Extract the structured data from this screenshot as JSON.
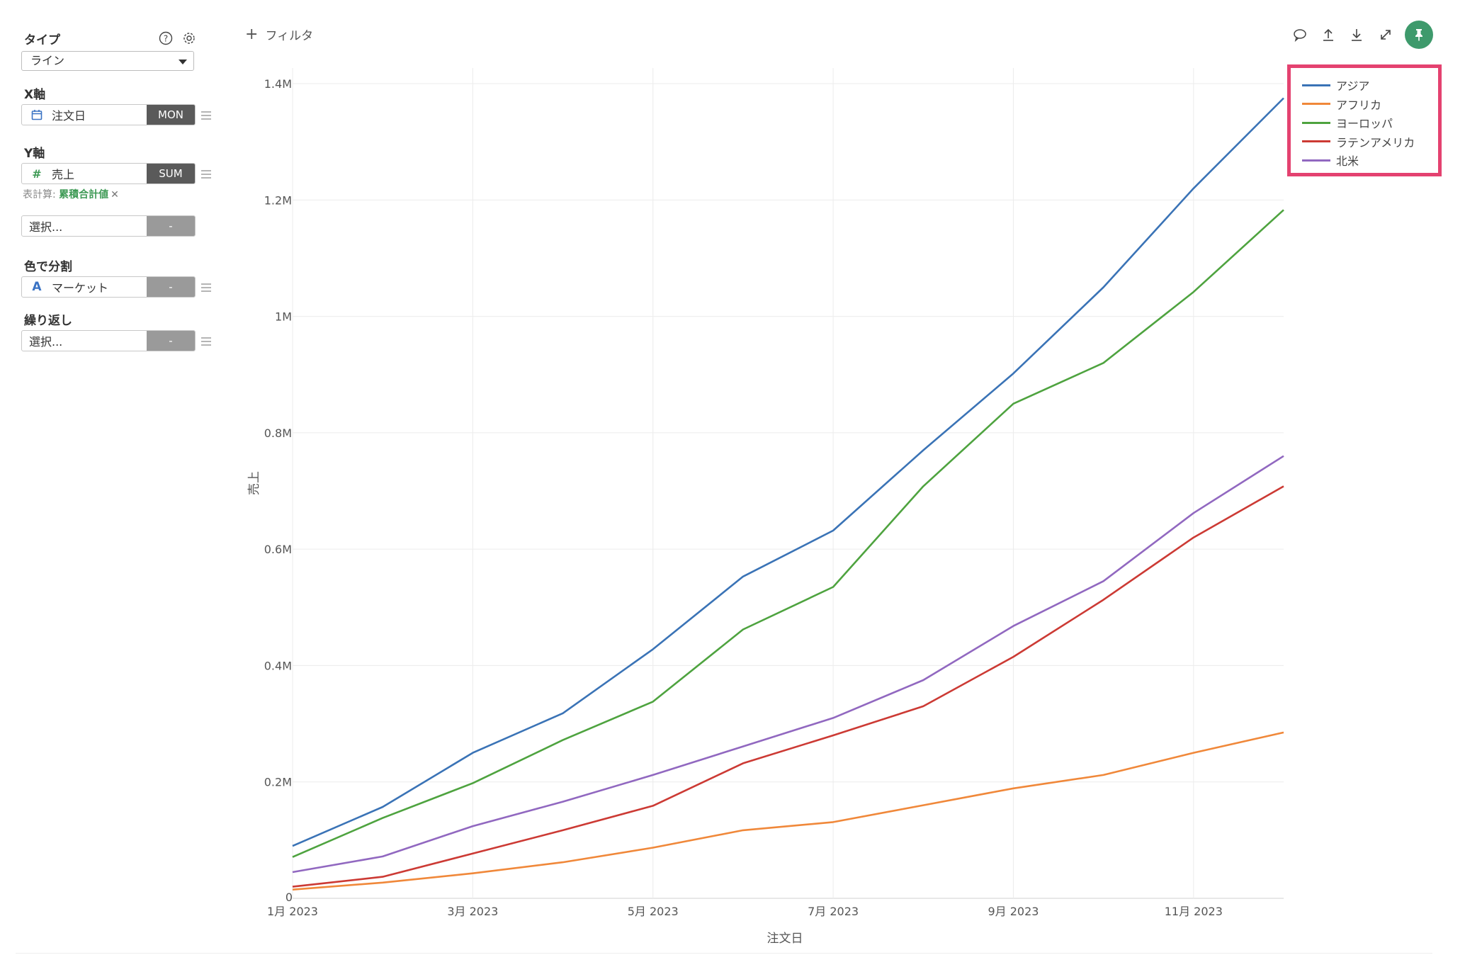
{
  "sidebar": {
    "type_label": "タイプ",
    "type_value": "ライン",
    "x_axis_label": "X軸",
    "x_field": "注文日",
    "x_agg": "MON",
    "y_axis_label": "Y軸",
    "y_field": "売上",
    "y_agg": "SUM",
    "table_calc_label": "表計算:",
    "table_calc_value": "累積合計値",
    "extra_select": "選択...",
    "extra_agg": "-",
    "color_label": "色で分割",
    "color_field": "マーケット",
    "color_agg": "-",
    "repeat_label": "繰り返し",
    "repeat_select": "選択...",
    "repeat_agg": "-"
  },
  "toolbar": {
    "filter_label": "フィルタ",
    "icons": [
      "comment-icon",
      "upload-icon",
      "download-icon",
      "expand-icon",
      "pin-icon"
    ]
  },
  "colors": {
    "アジア": "#3a73b6",
    "アフリカ": "#f0883a",
    "ヨーロッパ": "#4ea33f",
    "ラテンアメリカ": "#cc3a34",
    "北米": "#9168c0",
    "legend_border": "#e44270",
    "accent": "#3e9a6c"
  },
  "chart_data": {
    "type": "line",
    "xlabel": "注文日",
    "ylabel": "売上",
    "x": [
      "2023-01",
      "2023-02",
      "2023-03",
      "2023-04",
      "2023-05",
      "2023-06",
      "2023-07",
      "2023-08",
      "2023-09",
      "2023-10",
      "2023-11",
      "2023-12"
    ],
    "x_tick_labels": [
      "1月 2023",
      "3月 2023",
      "5月 2023",
      "7月 2023",
      "9月 2023",
      "11月 2023"
    ],
    "y_tick_labels": [
      "0",
      "0.2M",
      "0.4M",
      "0.6M",
      "0.8M",
      "1M",
      "1.2M",
      "1.4M"
    ],
    "ylim": [
      0,
      1400000
    ],
    "grid": true,
    "legend_position": "top-right",
    "series": [
      {
        "name": "アジア",
        "values": [
          90000,
          157000,
          250000,
          318000,
          428000,
          553000,
          632000,
          770000,
          902000,
          1050000,
          1220000,
          1375000
        ]
      },
      {
        "name": "アフリカ",
        "values": [
          15000,
          27000,
          43000,
          62000,
          87000,
          117000,
          131000,
          160000,
          189000,
          212000,
          250000,
          285000
        ]
      },
      {
        "name": "ヨーロッパ",
        "values": [
          71000,
          138000,
          198000,
          272000,
          338000,
          462000,
          535000,
          708000,
          850000,
          920000,
          1042000,
          1183000
        ]
      },
      {
        "name": "ラテンアメリカ",
        "values": [
          20000,
          37000,
          77000,
          117000,
          159000,
          232000,
          280000,
          330000,
          415000,
          513000,
          620000,
          708000
        ]
      },
      {
        "name": "北米",
        "values": [
          45000,
          72000,
          124000,
          166000,
          212000,
          261000,
          310000,
          375000,
          468000,
          545000,
          662000,
          760000
        ]
      }
    ]
  }
}
